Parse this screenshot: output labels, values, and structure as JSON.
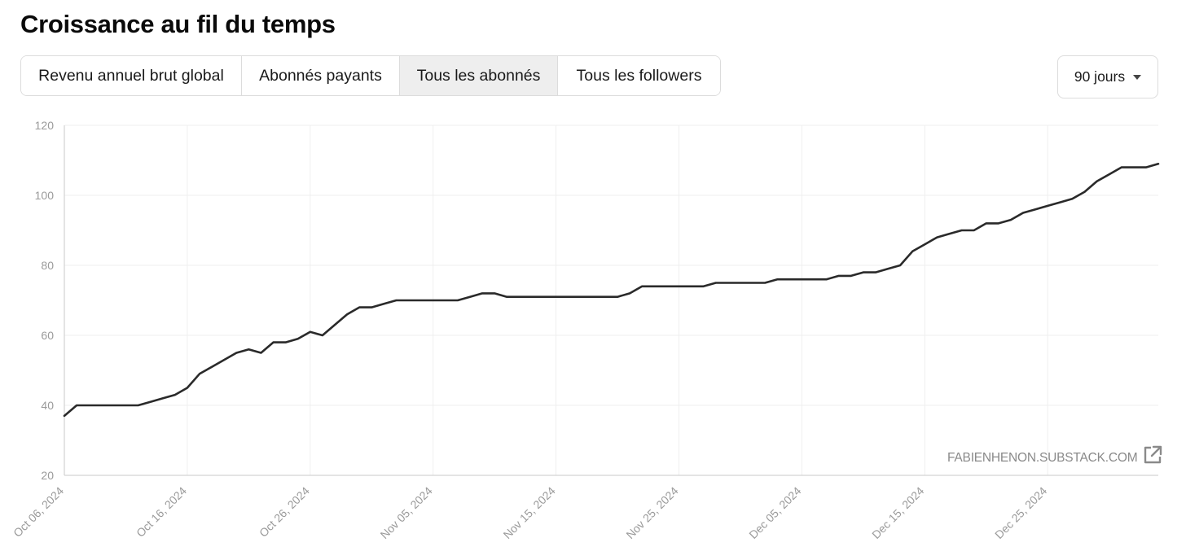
{
  "title": "Croissance au fil du temps",
  "tabs": [
    {
      "label": "Revenu annuel brut global",
      "active": false
    },
    {
      "label": "Abonnés payants",
      "active": false
    },
    {
      "label": "Tous les abonnés",
      "active": true
    },
    {
      "label": "Tous les followers",
      "active": false
    }
  ],
  "range_select": {
    "value": "90 jours",
    "icon": "chevron-down-icon"
  },
  "watermark": {
    "text": "FABIENHENON.SUBSTACK.COM",
    "icon": "external-link-icon"
  },
  "colors": {
    "line": "#2a2a2a",
    "grid": "#efefef",
    "axis_text": "#9a9a9a",
    "active_tab": "#eeeeee"
  },
  "chart_data": {
    "type": "line",
    "title": "",
    "xlabel": "",
    "ylabel": "",
    "ylim": [
      20,
      120
    ],
    "yticks": [
      20,
      40,
      60,
      80,
      100,
      120
    ],
    "xticks": [
      "Oct 06, 2024",
      "Oct 16, 2024",
      "Oct 26, 2024",
      "Nov 05, 2024",
      "Nov 15, 2024",
      "Nov 25, 2024",
      "Dec 05, 2024",
      "Dec 15, 2024",
      "Dec 25, 2024"
    ],
    "grid": true,
    "legend": "none",
    "x": [
      "2024-10-06",
      "2024-10-07",
      "2024-10-08",
      "2024-10-09",
      "2024-10-10",
      "2024-10-11",
      "2024-10-12",
      "2024-10-13",
      "2024-10-14",
      "2024-10-15",
      "2024-10-16",
      "2024-10-17",
      "2024-10-18",
      "2024-10-19",
      "2024-10-20",
      "2024-10-21",
      "2024-10-22",
      "2024-10-23",
      "2024-10-24",
      "2024-10-25",
      "2024-10-26",
      "2024-10-27",
      "2024-10-28",
      "2024-10-29",
      "2024-10-30",
      "2024-10-31",
      "2024-11-01",
      "2024-11-02",
      "2024-11-03",
      "2024-11-04",
      "2024-11-05",
      "2024-11-06",
      "2024-11-07",
      "2024-11-08",
      "2024-11-09",
      "2024-11-10",
      "2024-11-11",
      "2024-11-12",
      "2024-11-13",
      "2024-11-14",
      "2024-11-15",
      "2024-11-16",
      "2024-11-17",
      "2024-11-18",
      "2024-11-19",
      "2024-11-20",
      "2024-11-21",
      "2024-11-22",
      "2024-11-23",
      "2024-11-24",
      "2024-11-25",
      "2024-11-26",
      "2024-11-27",
      "2024-11-28",
      "2024-11-29",
      "2024-11-30",
      "2024-12-01",
      "2024-12-02",
      "2024-12-03",
      "2024-12-04",
      "2024-12-05",
      "2024-12-06",
      "2024-12-07",
      "2024-12-08",
      "2024-12-09",
      "2024-12-10",
      "2024-12-11",
      "2024-12-12",
      "2024-12-13",
      "2024-12-14",
      "2024-12-15",
      "2024-12-16",
      "2024-12-17",
      "2024-12-18",
      "2024-12-19",
      "2024-12-20",
      "2024-12-21",
      "2024-12-22",
      "2024-12-23",
      "2024-12-24",
      "2024-12-25",
      "2024-12-26",
      "2024-12-27",
      "2024-12-28",
      "2024-12-29",
      "2024-12-30",
      "2024-12-31",
      "2025-01-01",
      "2025-01-02",
      "2025-01-03"
    ],
    "series": [
      {
        "values": [
          37,
          40,
          40,
          40,
          40,
          40,
          40,
          41,
          42,
          43,
          45,
          49,
          51,
          53,
          55,
          56,
          55,
          58,
          58,
          59,
          61,
          60,
          63,
          66,
          68,
          68,
          69,
          70,
          70,
          70,
          70,
          70,
          70,
          71,
          72,
          72,
          71,
          71,
          71,
          71,
          71,
          71,
          71,
          71,
          71,
          71,
          72,
          74,
          74,
          74,
          74,
          74,
          74,
          75,
          75,
          75,
          75,
          75,
          76,
          76,
          76,
          76,
          76,
          77,
          77,
          78,
          78,
          79,
          80,
          84,
          86,
          88,
          89,
          90,
          90,
          92,
          92,
          93,
          95,
          96,
          97,
          98,
          99,
          101,
          104,
          106,
          108,
          108,
          108,
          109
        ]
      }
    ]
  }
}
